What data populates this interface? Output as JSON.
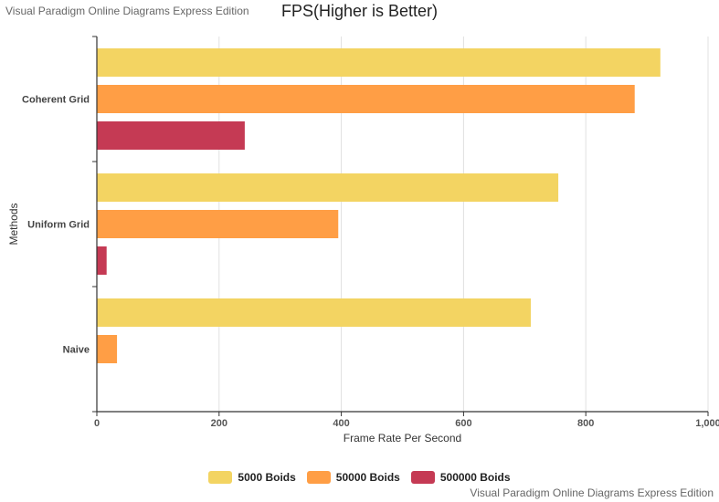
{
  "watermark": {
    "top": "Visual Paradigm Online Diagrams Express Edition",
    "bottom": "Visual Paradigm Online Diagrams Express Edition"
  },
  "chart_data": {
    "type": "bar",
    "orientation": "horizontal",
    "title": "FPS(Higher is Better)",
    "xlabel": "Frame Rate Per Second",
    "ylabel": "Methods",
    "xlim": [
      0,
      1000
    ],
    "xticks": [
      0,
      200,
      400,
      600,
      800,
      1000
    ],
    "xtick_labels": [
      "0",
      "200",
      "400",
      "600",
      "800",
      "1,000"
    ],
    "grid": true,
    "legend_position": "bottom",
    "categories": [
      "Coherent Grid",
      "Uniform Grid",
      "Naive"
    ],
    "series": [
      {
        "name": "5000 Boids",
        "color": "#f3d462",
        "values": [
          922,
          755,
          710
        ]
      },
      {
        "name": "50000 Boids",
        "color": "#ff9e45",
        "values": [
          880,
          395,
          33
        ]
      },
      {
        "name": "500000 Boids",
        "color": "#c53a54",
        "values": [
          242,
          16,
          0
        ]
      }
    ]
  }
}
